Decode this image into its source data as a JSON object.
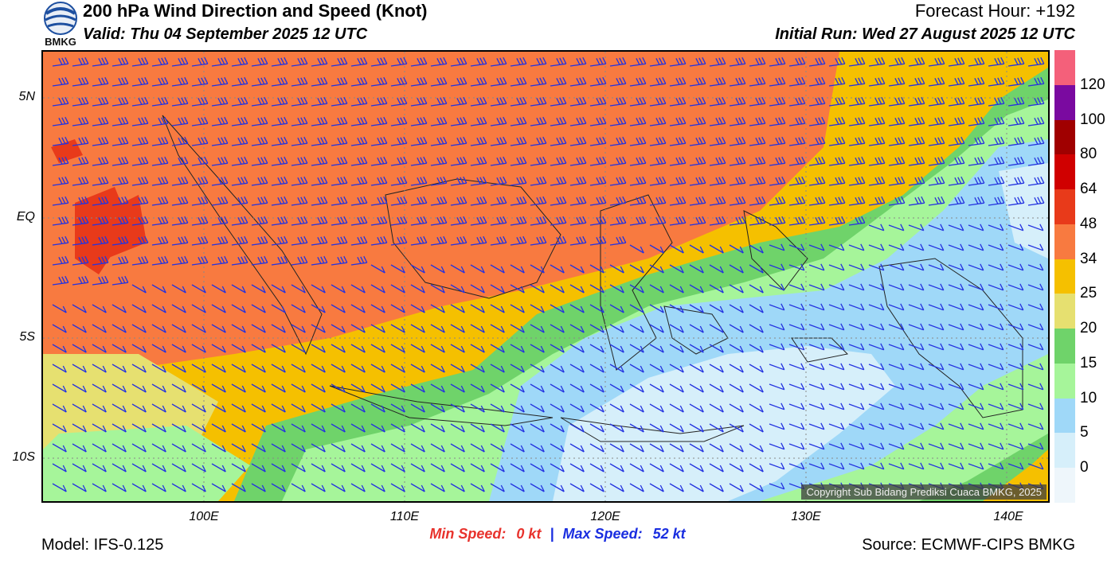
{
  "header": {
    "title": "200 hPa Wind Direction and Speed (Knot)",
    "valid": "Valid: Thu 04 September 2025 12 UTC",
    "forecast_hour": "Forecast Hour: +192",
    "initial_run": "Initial Run: Wed 27 August 2025 12 UTC"
  },
  "logo": {
    "icon": "bmkg-logo-icon",
    "text": "BMKG"
  },
  "map": {
    "lat_labels": [
      "5N",
      "EQ",
      "5S",
      "10S"
    ],
    "lon_labels": [
      "100E",
      "110E",
      "120E",
      "130E",
      "140E"
    ],
    "copyright": "Copyright Sub Bidang Prediksi Cuaca BMKG, 2025",
    "barb_color": "#2433e0"
  },
  "colorbar": {
    "labels": [
      "120",
      "100",
      "80",
      "64",
      "48",
      "34",
      "25",
      "20",
      "15",
      "10",
      "5",
      "0"
    ],
    "colors": [
      "#f4607a",
      "#7a0aa0",
      "#a00000",
      "#d00000",
      "#e83a1a",
      "#f87a40",
      "#f5c000",
      "#e6e070",
      "#6fd36a",
      "#a6f59a",
      "#9fd8f8",
      "#d6effa",
      "#eef6fb"
    ]
  },
  "footer": {
    "min_label": "Min Speed:",
    "min_value": "0 kt",
    "separator": "|",
    "max_label": "Max Speed:",
    "max_value": "52 kt",
    "model": "Model: IFS-0.125",
    "source": "Source: ECMWF-CIPS BMKG"
  }
}
